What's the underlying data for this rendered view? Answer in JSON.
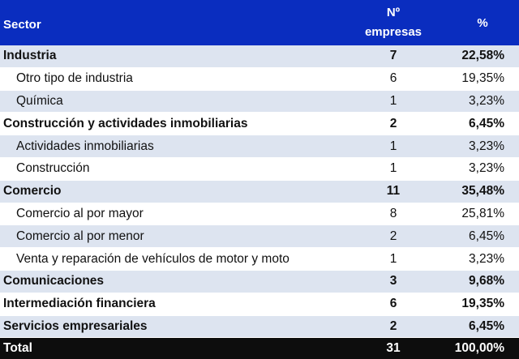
{
  "table": {
    "headers": {
      "sector": "Sector",
      "num_line1": "Nº",
      "num_line2": "empresas",
      "pct": "%"
    },
    "rows": [
      {
        "label": "Industria",
        "count": "7",
        "pct": "22,58%",
        "level": "main"
      },
      {
        "label": "Otro tipo de industria",
        "count": "6",
        "pct": "19,35%",
        "level": "sub"
      },
      {
        "label": "Química",
        "count": "1",
        "pct": "3,23%",
        "level": "sub"
      },
      {
        "label": "Construcción y actividades inmobiliarias",
        "count": "2",
        "pct": "6,45%",
        "level": "main"
      },
      {
        "label": "Actividades inmobiliarias",
        "count": "1",
        "pct": "3,23%",
        "level": "sub"
      },
      {
        "label": "Construcción",
        "count": "1",
        "pct": "3,23%",
        "level": "sub"
      },
      {
        "label": "Comercio",
        "count": "11",
        "pct": "35,48%",
        "level": "main"
      },
      {
        "label": "Comercio al por mayor",
        "count": "8",
        "pct": "25,81%",
        "level": "sub"
      },
      {
        "label": "Comercio al por menor",
        "count": "2",
        "pct": "6,45%",
        "level": "sub"
      },
      {
        "label": "Venta y reparación de vehículos de motor y moto",
        "count": "1",
        "pct": "3,23%",
        "level": "sub"
      },
      {
        "label": "Comunicaciones",
        "count": "3",
        "pct": "9,68%",
        "level": "main"
      },
      {
        "label": "Intermediación financiera",
        "count": "6",
        "pct": "19,35%",
        "level": "main"
      },
      {
        "label": "Servicios empresariales",
        "count": "2",
        "pct": "6,45%",
        "level": "main"
      }
    ],
    "total": {
      "label": "Total",
      "count": "31",
      "pct": "100,00%"
    }
  },
  "colors": {
    "header_bg": "#0a2dbf",
    "shade_bg": "#dde4f0",
    "total_bg": "#0d0d0d"
  }
}
